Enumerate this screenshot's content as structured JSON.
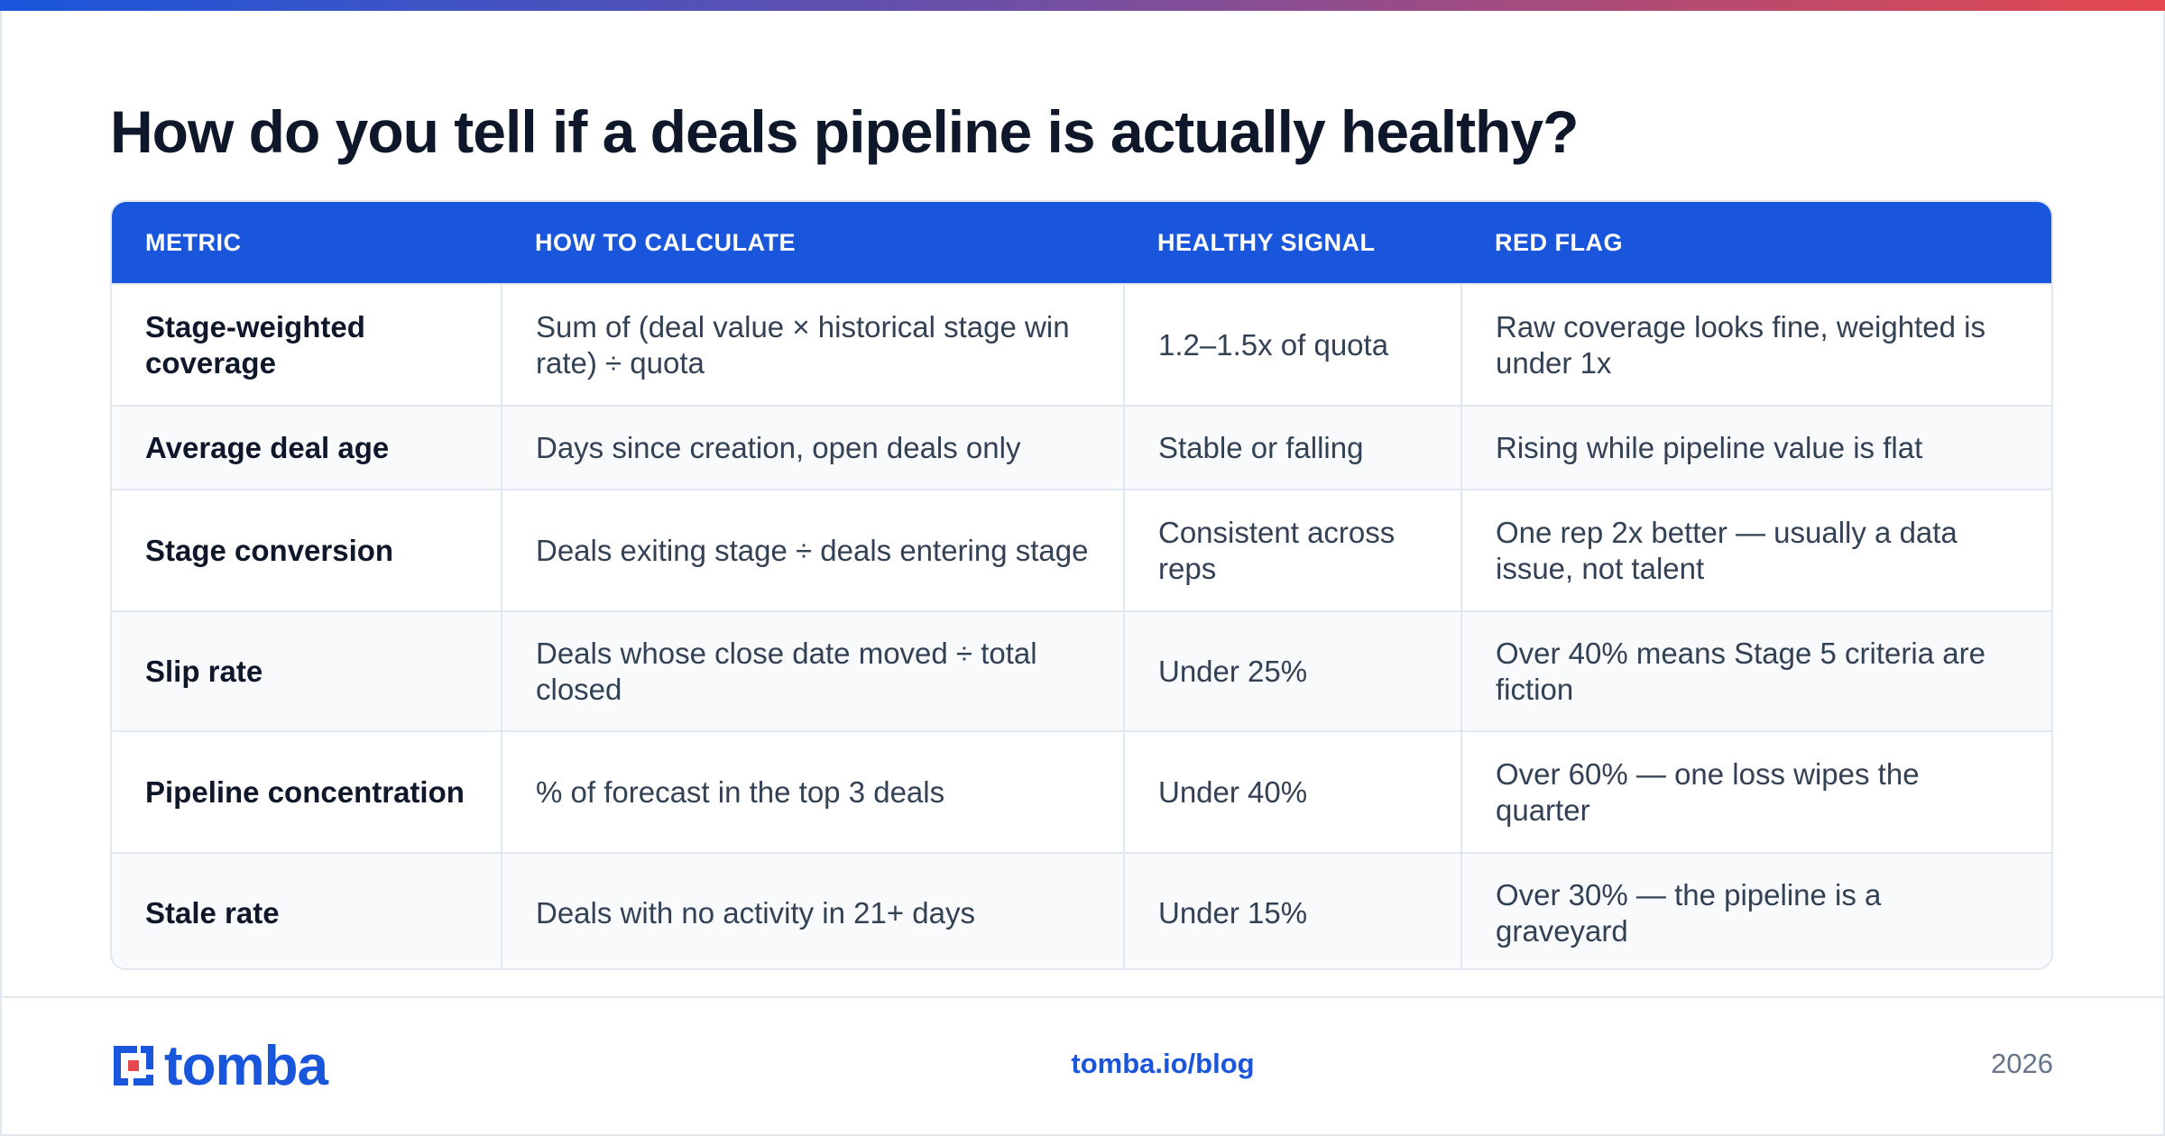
{
  "header": {
    "title": "How do you tell if a deals pipeline is actually healthy?"
  },
  "table": {
    "columns": [
      "METRIC",
      "HOW TO CALCULATE",
      "HEALTHY SIGNAL",
      "RED FLAG"
    ],
    "rows": [
      [
        "Stage-weighted coverage",
        "Sum of (deal value × historical stage win rate) ÷ quota",
        "1.2–1.5x of quota",
        "Raw coverage looks fine, weighted is under 1x"
      ],
      [
        "Average deal age",
        "Days since creation, open deals only",
        "Stable or falling",
        "Rising while pipeline value is flat"
      ],
      [
        "Stage conversion",
        "Deals exiting stage ÷ deals entering stage",
        "Consistent across reps",
        "One rep 2x better — usually a data issue, not talent"
      ],
      [
        "Slip rate",
        "Deals whose close date moved ÷ total closed",
        "Under 25%",
        "Over 40% means Stage 5 criteria are fiction"
      ],
      [
        "Pipeline concentration",
        "% of forecast in the top 3 deals",
        "Under 40%",
        "Over 60% — one loss wipes the quarter"
      ],
      [
        "Stale rate",
        "Deals with no activity in 21+ days",
        "Under 15%",
        "Over 30% — the pipeline is a graveyard"
      ]
    ]
  },
  "footer": {
    "logo": "tomba",
    "url": "tomba.io/blog",
    "year": "2026"
  }
}
